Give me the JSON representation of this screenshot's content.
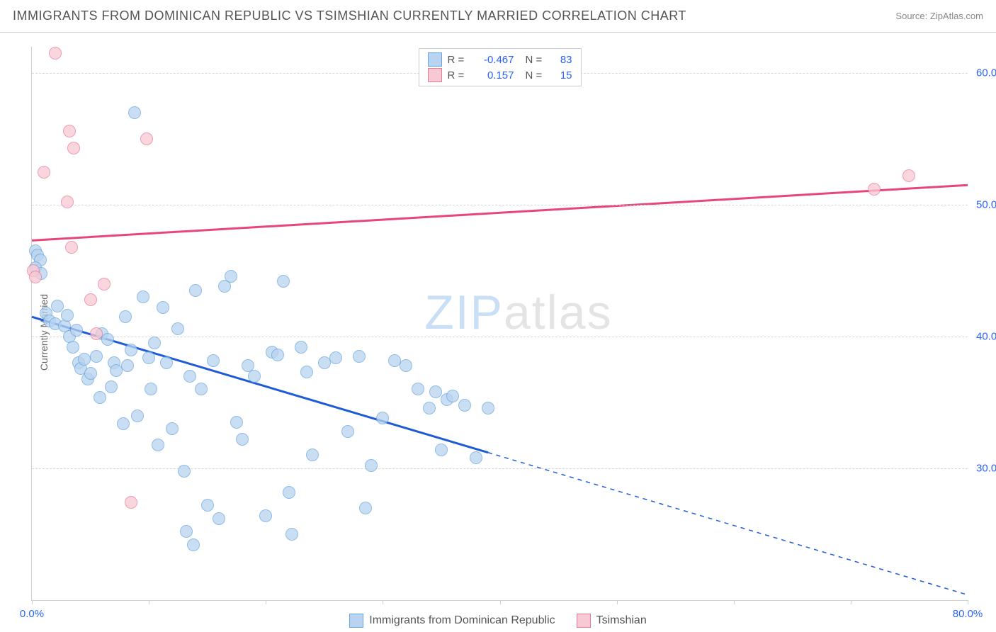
{
  "header": {
    "title": "IMMIGRANTS FROM DOMINICAN REPUBLIC VS TSIMSHIAN CURRENTLY MARRIED CORRELATION CHART",
    "source_label": "Source:",
    "source_value": "ZipAtlas.com"
  },
  "watermark": {
    "part1": "ZIP",
    "part2": "atlas"
  },
  "chart": {
    "type": "scatter",
    "ylabel": "Currently Married",
    "xlim": [
      0,
      80
    ],
    "ylim": [
      20,
      62
    ],
    "x_ticks": [
      0,
      10,
      20,
      30,
      40,
      50,
      60,
      70,
      80
    ],
    "x_tick_labels": {
      "0": "0.0%",
      "80": "80.0%"
    },
    "y_grid": [
      30,
      40,
      50,
      60
    ],
    "y_tick_labels": {
      "30": "30.0%",
      "40": "40.0%",
      "50": "50.0%",
      "60": "60.0%"
    },
    "background_color": "#ffffff",
    "grid_color": "#d8d8d8",
    "axis_color": "#d0d0d0",
    "tick_label_color": "#2962ff",
    "label_color": "#666666",
    "marker_radius": 9,
    "series": [
      {
        "id": "dominican",
        "label": "Immigrants from Dominican Republic",
        "fill": "#b8d4f0",
        "stroke": "#6aa6de",
        "fill_opacity": 0.75,
        "R": "-0.467",
        "N": "83",
        "trend": {
          "color": "#1e5bd6",
          "width": 3,
          "solid": {
            "x1": 0,
            "y1": 41.5,
            "x2": 39,
            "y2": 31.2
          },
          "dashed": {
            "x1": 39,
            "y1": 31.2,
            "x2": 80,
            "y2": 20.4
          }
        },
        "points": [
          [
            0.3,
            46.5
          ],
          [
            0.5,
            46.2
          ],
          [
            0.7,
            45.8
          ],
          [
            0.3,
            45.2
          ],
          [
            0.8,
            44.8
          ],
          [
            1.2,
            41.8
          ],
          [
            1.5,
            41.2
          ],
          [
            2.0,
            41.0
          ],
          [
            2.2,
            42.3
          ],
          [
            2.8,
            40.8
          ],
          [
            3.0,
            41.6
          ],
          [
            3.2,
            40.0
          ],
          [
            3.5,
            39.2
          ],
          [
            3.8,
            40.5
          ],
          [
            4.0,
            38.0
          ],
          [
            4.2,
            37.6
          ],
          [
            4.5,
            38.3
          ],
          [
            4.8,
            36.8
          ],
          [
            5.0,
            37.2
          ],
          [
            5.5,
            38.5
          ],
          [
            5.8,
            35.4
          ],
          [
            6.0,
            40.2
          ],
          [
            6.5,
            39.8
          ],
          [
            6.8,
            36.2
          ],
          [
            7.0,
            38.0
          ],
          [
            7.2,
            37.4
          ],
          [
            7.8,
            33.4
          ],
          [
            8.0,
            41.5
          ],
          [
            8.2,
            37.8
          ],
          [
            8.5,
            39.0
          ],
          [
            8.8,
            57.0
          ],
          [
            9.0,
            34.0
          ],
          [
            9.5,
            43.0
          ],
          [
            10.0,
            38.4
          ],
          [
            10.2,
            36.0
          ],
          [
            10.5,
            39.5
          ],
          [
            10.8,
            31.8
          ],
          [
            11.2,
            42.2
          ],
          [
            11.5,
            38.0
          ],
          [
            12.0,
            33.0
          ],
          [
            12.5,
            40.6
          ],
          [
            13.0,
            29.8
          ],
          [
            13.2,
            25.2
          ],
          [
            13.5,
            37.0
          ],
          [
            13.8,
            24.2
          ],
          [
            14.0,
            43.5
          ],
          [
            14.5,
            36.0
          ],
          [
            15.0,
            27.2
          ],
          [
            15.5,
            38.2
          ],
          [
            16.0,
            26.2
          ],
          [
            16.5,
            43.8
          ],
          [
            17.0,
            44.6
          ],
          [
            17.5,
            33.5
          ],
          [
            18.0,
            32.2
          ],
          [
            18.5,
            37.8
          ],
          [
            19.0,
            37.0
          ],
          [
            20.0,
            26.4
          ],
          [
            20.5,
            38.8
          ],
          [
            21.0,
            38.6
          ],
          [
            21.5,
            44.2
          ],
          [
            22.0,
            28.2
          ],
          [
            22.2,
            25.0
          ],
          [
            23.0,
            39.2
          ],
          [
            23.5,
            37.3
          ],
          [
            24.0,
            31.0
          ],
          [
            25.0,
            38.0
          ],
          [
            26.0,
            38.4
          ],
          [
            27.0,
            32.8
          ],
          [
            28.0,
            38.5
          ],
          [
            28.5,
            27.0
          ],
          [
            29.0,
            30.2
          ],
          [
            30.0,
            33.8
          ],
          [
            31.0,
            38.2
          ],
          [
            32.0,
            37.8
          ],
          [
            33.0,
            36.0
          ],
          [
            34.0,
            34.6
          ],
          [
            34.5,
            35.8
          ],
          [
            35.0,
            31.4
          ],
          [
            35.5,
            35.2
          ],
          [
            36.0,
            35.5
          ],
          [
            37.0,
            34.8
          ],
          [
            38.0,
            30.8
          ],
          [
            39.0,
            34.6
          ]
        ]
      },
      {
        "id": "tsimshian",
        "label": "Tsimshian",
        "fill": "#f7c9d4",
        "stroke": "#e87b9c",
        "fill_opacity": 0.75,
        "R": "0.157",
        "N": "15",
        "trend": {
          "color": "#e8457a",
          "width": 3,
          "solid": {
            "x1": 0,
            "y1": 47.3,
            "x2": 80,
            "y2": 51.5
          }
        },
        "points": [
          [
            0.1,
            45.0
          ],
          [
            0.3,
            44.5
          ],
          [
            1.0,
            52.5
          ],
          [
            2.0,
            61.5
          ],
          [
            3.2,
            55.6
          ],
          [
            3.0,
            50.2
          ],
          [
            3.4,
            46.8
          ],
          [
            3.6,
            54.3
          ],
          [
            5.0,
            42.8
          ],
          [
            5.5,
            40.2
          ],
          [
            6.2,
            44.0
          ],
          [
            8.5,
            27.4
          ],
          [
            9.8,
            55.0
          ],
          [
            72.0,
            51.2
          ],
          [
            75.0,
            52.2
          ]
        ]
      }
    ]
  },
  "legend_bottom": [
    {
      "series": "dominican"
    },
    {
      "series": "tsimshian"
    }
  ]
}
